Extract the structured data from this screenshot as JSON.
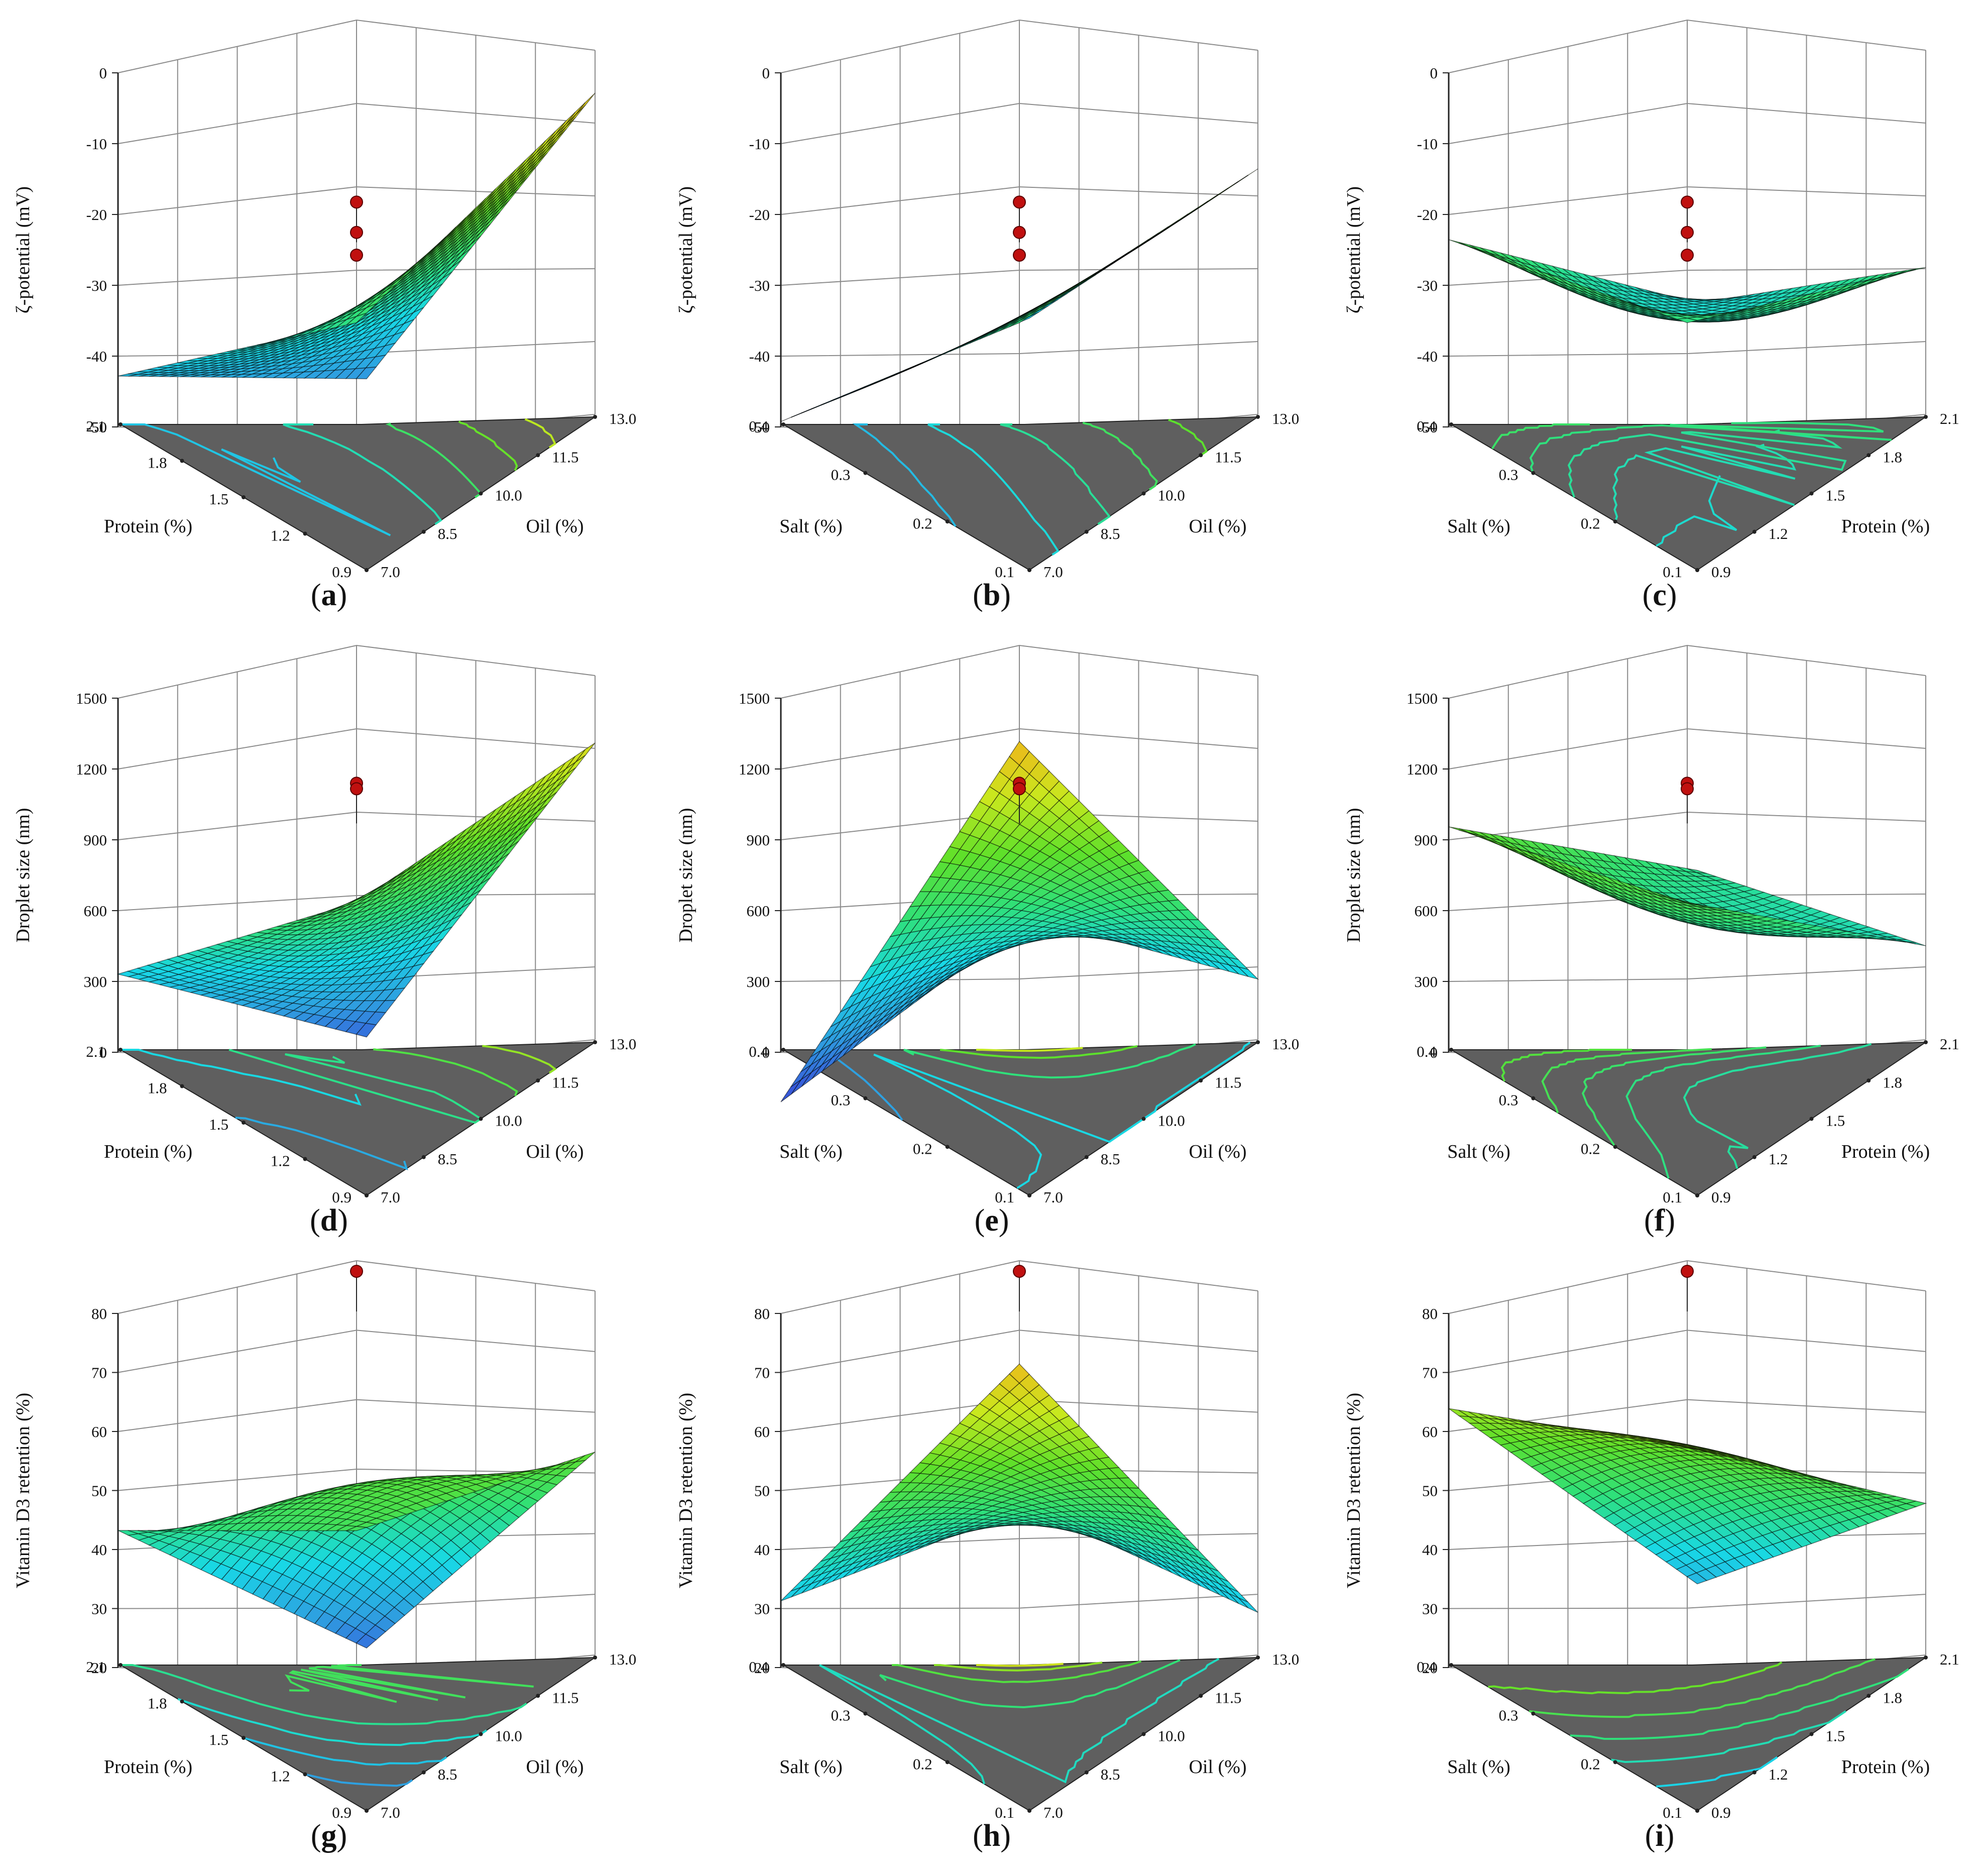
{
  "colors": {
    "floor": "#5f5f5f",
    "grid": "#8a8a8a",
    "axis": "#222222",
    "design_point": "#c0100f",
    "colormap": [
      "#3a43d8",
      "#2f9de0",
      "#18d8e6",
      "#2fe07a",
      "#5ee02a",
      "#c9e81e",
      "#f2b21a"
    ]
  },
  "chart_data": [
    {
      "type": "surface",
      "panel": "a",
      "zlabel": "ζ-potential (mV)",
      "xlabel": "Protein (%)",
      "ylabel": "Oil (%)",
      "zticks": [
        "0",
        "-10",
        "-20",
        "-30",
        "-40",
        "-50"
      ],
      "zlim": [
        -55,
        0
      ],
      "xticks": [
        "2.1",
        "1.8",
        "1.5",
        "1.2",
        "0.9"
      ],
      "yticks": [
        "13.0",
        "11.5",
        "10.0",
        "8.5",
        "7.0"
      ],
      "xlim": [
        0.9,
        2.1
      ],
      "ylim": [
        7.0,
        13.0
      ],
      "corners": {
        "back": -28,
        "right": -3,
        "front": -47,
        "left": -41
      },
      "bulge": -3,
      "points": [
        -26,
        -30,
        -33
      ]
    },
    {
      "type": "surface",
      "panel": "b",
      "zlabel": "ζ-potential (mV)",
      "xlabel": "Salt (%)",
      "ylabel": "Oil (%)",
      "zticks": [
        "0",
        "-10",
        "-20",
        "-30",
        "-40",
        "-50"
      ],
      "zlim": [
        -55,
        0
      ],
      "xticks": [
        "0.4",
        "0.3",
        "0.2",
        "0.1"
      ],
      "yticks": [
        "13.0",
        "11.5",
        "10.0",
        "8.5",
        "7.0"
      ],
      "xlim": [
        0.1,
        0.4
      ],
      "ylim": [
        7.0,
        13.0
      ],
      "corners": {
        "back": -28,
        "right": -13,
        "front": -39,
        "left": -47
      },
      "bulge": -1,
      "points": [
        -26,
        -30,
        -33
      ]
    },
    {
      "type": "surface",
      "panel": "c",
      "zlabel": "ζ-potential (mV)",
      "xlabel": "Salt (%)",
      "ylabel": "Protein (%)",
      "zticks": [
        "0",
        "-10",
        "-20",
        "-30",
        "-40",
        "-50"
      ],
      "zlim": [
        -55,
        0
      ],
      "xticks": [
        "0.4",
        "0.3",
        "0.2",
        "0.1"
      ],
      "yticks": [
        "2.1",
        "1.8",
        "1.5",
        "1.2",
        "0.9"
      ],
      "xlim": [
        0.1,
        0.4
      ],
      "ylim": [
        0.9,
        2.1
      ],
      "corners": {
        "back": -28,
        "right": -26,
        "front": -37,
        "left": -23
      },
      "bulge": -5,
      "points": [
        -26,
        -30,
        -33
      ]
    },
    {
      "type": "surface",
      "panel": "d",
      "zlabel": "Droplet size (nm)",
      "xlabel": "Protein (%)",
      "ylabel": "Oil (%)",
      "zticks": [
        "1500",
        "1200",
        "900",
        "600",
        "300",
        "0"
      ],
      "zlim": [
        0,
        1500
      ],
      "xticks": [
        "2.1",
        "1.8",
        "1.5",
        "1.2",
        "0.9"
      ],
      "yticks": [
        "13.0",
        "11.5",
        "10.0",
        "8.5",
        "7.0"
      ],
      "xlim": [
        0.9,
        2.1
      ],
      "ylim": [
        7.0,
        13.0
      ],
      "corners": {
        "back": 900,
        "right": 1330,
        "front": 100,
        "left": 480
      },
      "bulge": -90,
      "points": [
        950,
        930
      ]
    },
    {
      "type": "surface",
      "panel": "e",
      "zlabel": "Droplet size (nm)",
      "xlabel": "Salt (%)",
      "ylabel": "Oil (%)",
      "zticks": [
        "1500",
        "1200",
        "900",
        "600",
        "300",
        "0"
      ],
      "zlim": [
        0,
        1500
      ],
      "xticks": [
        "0.4",
        "0.3",
        "0.2",
        "0.1"
      ],
      "yticks": [
        "13.0",
        "11.5",
        "10.0",
        "8.5",
        "7.0"
      ],
      "xlim": [
        0.1,
        0.4
      ],
      "ylim": [
        7.0,
        13.0
      ],
      "corners": {
        "back": 1480,
        "right": 480,
        "front": 530,
        "left": 20
      },
      "bulge": 60,
      "points": [
        950,
        930
      ]
    },
    {
      "type": "surface",
      "panel": "f",
      "zlabel": "Droplet size (nm)",
      "xlabel": "Salt (%)",
      "ylabel": "Protein (%)",
      "zticks": [
        "1500",
        "1200",
        "900",
        "600",
        "300",
        "0"
      ],
      "zlim": [
        0,
        1500
      ],
      "xticks": [
        "0.4",
        "0.3",
        "0.2",
        "0.1"
      ],
      "yticks": [
        "2.1",
        "1.8",
        "1.5",
        "1.2",
        "0.9"
      ],
      "xlim": [
        0.1,
        0.4
      ],
      "ylim": [
        0.9,
        2.1
      ],
      "corners": {
        "back": 900,
        "right": 600,
        "front": 700,
        "left": 1010
      },
      "bulge": -130,
      "points": [
        950,
        930
      ]
    },
    {
      "type": "surface",
      "panel": "g",
      "zlabel": "Vitamin D3 retention (%)",
      "xlabel": "Protein (%)",
      "ylabel": "Oil (%)",
      "zticks": [
        "80",
        "70",
        "60",
        "50",
        "40",
        "30",
        "20"
      ],
      "zlim": [
        15,
        80
      ],
      "xticks": [
        "2.1",
        "1.8",
        "1.5",
        "1.2",
        "0.9"
      ],
      "yticks": [
        "13.0",
        "11.5",
        "10.0",
        "8.5",
        "7.0"
      ],
      "xlim": [
        0.9,
        2.1
      ],
      "ylim": [
        7.0,
        13.0
      ],
      "corners": {
        "back": 52,
        "right": 58,
        "front": 20,
        "left": 45
      },
      "bulge": 8,
      "points": [
        76
      ]
    },
    {
      "type": "surface",
      "panel": "h",
      "zlabel": "Vitamin D3 retention (%)",
      "xlabel": "Salt (%)",
      "ylabel": "Oil (%)",
      "zticks": [
        "80",
        "70",
        "60",
        "50",
        "40",
        "30",
        "20"
      ],
      "zlim": [
        15,
        80
      ],
      "xticks": [
        "0.4",
        "0.3",
        "0.2",
        "0.1"
      ],
      "yticks": [
        "13.0",
        "11.5",
        "10.0",
        "8.5",
        "7.0"
      ],
      "xlim": [
        0.1,
        0.4
      ],
      "ylim": [
        7.0,
        13.0
      ],
      "corners": {
        "back": 78,
        "right": 33,
        "front": 42,
        "left": 34
      },
      "bulge": 3,
      "points": [
        76
      ]
    },
    {
      "type": "surface",
      "panel": "i",
      "zlabel": "Vitamin D3 retention (%)",
      "xlabel": "Salt (%)",
      "ylabel": "Protein (%)",
      "zticks": [
        "80",
        "70",
        "60",
        "50",
        "40",
        "30",
        "20"
      ],
      "zlim": [
        15,
        80
      ],
      "xticks": [
        "0.4",
        "0.3",
        "0.2",
        "0.1"
      ],
      "yticks": [
        "2.1",
        "1.8",
        "1.5",
        "1.2",
        "0.9"
      ],
      "xlim": [
        0.1,
        0.4
      ],
      "ylim": [
        0.9,
        2.1
      ],
      "corners": {
        "back": 65,
        "right": 50,
        "front": 30,
        "left": 64
      },
      "bulge": 4,
      "points": [
        76
      ]
    }
  ]
}
